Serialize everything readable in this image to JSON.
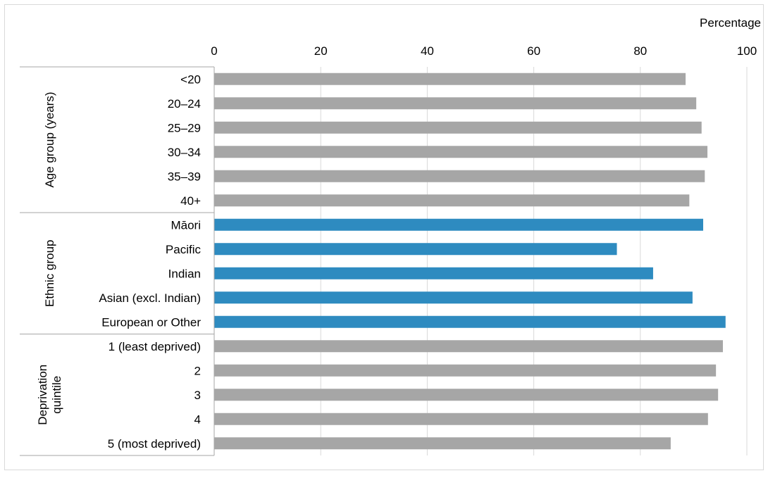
{
  "chart_data": {
    "type": "bar",
    "orientation": "horizontal",
    "title": "",
    "xlabel": "Percentage",
    "ylabel": "",
    "xlim": [
      0,
      100
    ],
    "x_ticks": [
      "0",
      "20",
      "40",
      "60",
      "80",
      "100"
    ],
    "grid": "vertical",
    "colors": {
      "age": "#a6a6a6",
      "ethnic": "#2e8bc0",
      "deprivation": "#a6a6a6"
    },
    "groups": [
      {
        "name": "Age group (years)",
        "color_key": "age",
        "categories": [
          "<20",
          "20–24",
          "25–29",
          "30–34",
          "35–39",
          "40+"
        ],
        "values": [
          88.5,
          90.5,
          91.5,
          92.6,
          92.1,
          89.2
        ]
      },
      {
        "name": "Ethnic group",
        "color_key": "ethnic",
        "categories": [
          "Māori",
          "Pacific",
          "Indian",
          "Asian (excl. Indian)",
          "European or Other"
        ],
        "values": [
          91.8,
          75.6,
          82.4,
          89.8,
          96.0
        ]
      },
      {
        "name": "Deprivation quintile",
        "color_key": "deprivation",
        "categories": [
          "1 (least deprived)",
          "2",
          "3",
          "4",
          "5 (most deprived)"
        ],
        "values": [
          95.5,
          94.2,
          94.6,
          92.7,
          85.7
        ]
      }
    ]
  }
}
